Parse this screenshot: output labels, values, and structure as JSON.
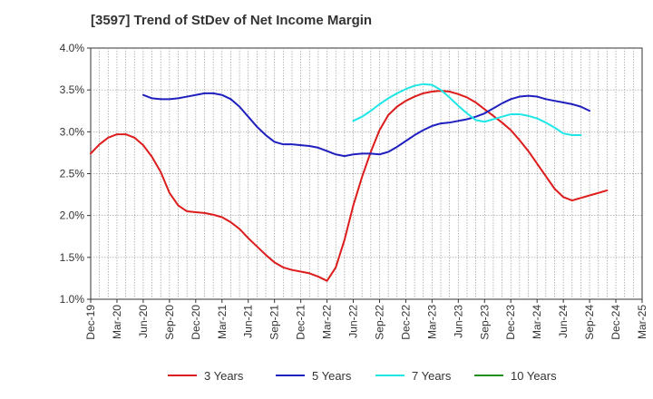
{
  "chart_data": {
    "type": "line",
    "title": "[3597]  Trend of StDev of Net Income Margin",
    "xlabel": "",
    "ylabel": "",
    "ylim": [
      1.0,
      4.0
    ],
    "y_ticks": [
      "1.0%",
      "1.5%",
      "2.0%",
      "2.5%",
      "3.0%",
      "3.5%",
      "4.0%"
    ],
    "x_ticks": [
      "Dec-19",
      "Mar-20",
      "Jun-20",
      "Sep-20",
      "Dec-20",
      "Mar-21",
      "Jun-21",
      "Sep-21",
      "Dec-21",
      "Mar-22",
      "Jun-22",
      "Sep-22",
      "Dec-22",
      "Mar-23",
      "Jun-23",
      "Sep-23",
      "Dec-23",
      "Mar-24",
      "Jun-24",
      "Sep-24",
      "Dec-24",
      "Mar-25"
    ],
    "grid": true,
    "legend_position": "bottom",
    "series": [
      {
        "name": "3 Years",
        "color": "#dd1c1c",
        "start_index": 0,
        "values": [
          2.74,
          2.85,
          2.93,
          2.97,
          2.97,
          2.93,
          2.84,
          2.7,
          2.52,
          2.27,
          2.12,
          2.05,
          2.04,
          2.03,
          2.01,
          1.98,
          1.92,
          1.84,
          1.73,
          1.63,
          1.53,
          1.44,
          1.38,
          1.35,
          1.33,
          1.31,
          1.27,
          1.22,
          1.38,
          1.71,
          2.12,
          2.46,
          2.76,
          3.02,
          3.2,
          3.3,
          3.37,
          3.42,
          3.46,
          3.48,
          3.49,
          3.48,
          3.45,
          3.41,
          3.35,
          3.27,
          3.19,
          3.11,
          3.02,
          2.9,
          2.77,
          2.62,
          2.47,
          2.32,
          2.22,
          2.18,
          2.21,
          2.24,
          2.27,
          2.3
        ]
      },
      {
        "name": "5 Years",
        "color": "#1f1fbf",
        "start_index": 6,
        "values": [
          3.44,
          3.4,
          3.39,
          3.39,
          3.4,
          3.42,
          3.44,
          3.46,
          3.46,
          3.44,
          3.39,
          3.3,
          3.18,
          3.06,
          2.96,
          2.88,
          2.85,
          2.85,
          2.84,
          2.83,
          2.81,
          2.77,
          2.73,
          2.71,
          2.73,
          2.74,
          2.74,
          2.73,
          2.76,
          2.82,
          2.89,
          2.96,
          3.02,
          3.07,
          3.1,
          3.11,
          3.13,
          3.15,
          3.18,
          3.22,
          3.28,
          3.34,
          3.39,
          3.42,
          3.43,
          3.42,
          3.39,
          3.37,
          3.35,
          3.33,
          3.3,
          3.25
        ]
      },
      {
        "name": "7 Years",
        "color": "#1fe6e6",
        "start_index": 30,
        "values": [
          3.13,
          3.18,
          3.25,
          3.33,
          3.4,
          3.46,
          3.51,
          3.55,
          3.57,
          3.56,
          3.5,
          3.41,
          3.31,
          3.22,
          3.14,
          3.12,
          3.15,
          3.18,
          3.21,
          3.21,
          3.19,
          3.16,
          3.11,
          3.05,
          2.98,
          2.96,
          2.96
        ]
      },
      {
        "name": "10 Years",
        "color": "#1f8f1f",
        "start_index": 0,
        "values": []
      }
    ]
  }
}
